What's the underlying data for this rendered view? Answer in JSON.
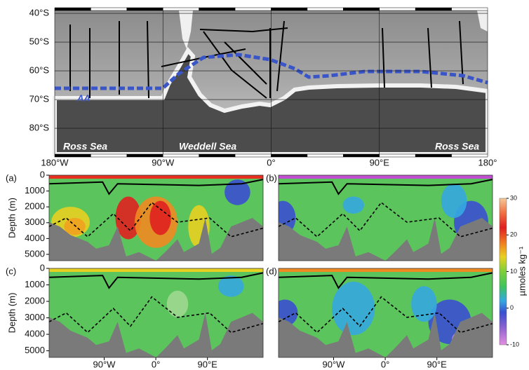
{
  "map": {
    "xlim": [
      -180,
      180
    ],
    "ylim": [
      -39,
      -89
    ],
    "lat_ticks": [
      {
        "value": -40,
        "label": "40°S"
      },
      {
        "value": -50,
        "label": "50°S"
      },
      {
        "value": -60,
        "label": "60°S"
      },
      {
        "value": -70,
        "label": "70°S"
      },
      {
        "value": -80,
        "label": "80°S"
      }
    ],
    "lon_ticks": [
      {
        "value": -180,
        "label": "180°W"
      },
      {
        "value": -90,
        "label": "90°W"
      },
      {
        "value": 0,
        "label": "0°"
      },
      {
        "value": 90,
        "label": "90°E"
      },
      {
        "value": 180,
        "label": "180°"
      }
    ],
    "regions": [
      "Ross Sea",
      "Weddell Sea",
      "Ross Sea"
    ],
    "front_label": "AA"
  },
  "sections": {
    "panels": [
      "(a)",
      "(b)",
      "(c)",
      "(d)"
    ],
    "ylabel": "Depth (m)",
    "ylim": [
      0,
      5400
    ],
    "yticks": [
      0,
      1000,
      2000,
      3000,
      4000,
      5000
    ],
    "xlim": [
      -186,
      187
    ],
    "xticks": [
      {
        "value": -90,
        "label": "90°W"
      },
      {
        "value": 0,
        "label": "0°"
      },
      {
        "value": 90,
        "label": "90°E"
      }
    ]
  },
  "colorbar": {
    "label": "µmoles kg⁻¹",
    "lim": [
      -10,
      30
    ],
    "ticks": [
      30,
      20,
      10,
      0,
      -10
    ]
  }
}
